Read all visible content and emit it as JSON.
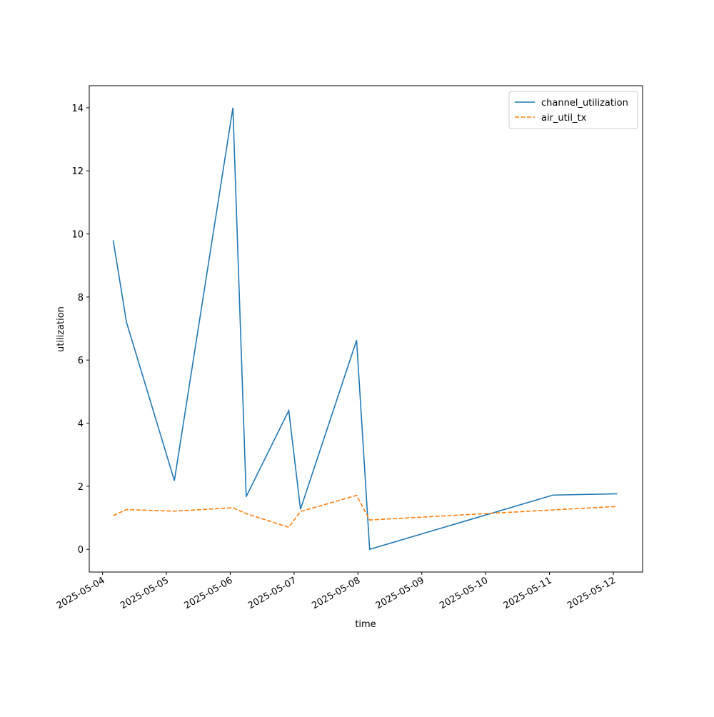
{
  "chart_data": {
    "type": "line",
    "x_label": "time",
    "y_label": "utilization",
    "x": [
      "2025-05-04T04:00",
      "2025-05-04T09:00",
      "2025-05-05T03:00",
      "2025-05-06T01:00",
      "2025-05-06T06:00",
      "2025-05-06T22:00",
      "2025-05-07T02:24",
      "2025-05-07T23:30",
      "2025-05-08T04:24",
      "2025-05-11T01:20",
      "2025-05-12T01:30"
    ],
    "series": [
      {
        "name": "channel_utilization",
        "color": "#1f77b4",
        "dash": "solid",
        "values": [
          9.8,
          7.2,
          2.18,
          14.0,
          1.67,
          4.4,
          1.27,
          6.63,
          0.0,
          1.72,
          1.76
        ]
      },
      {
        "name": "air_util_tx",
        "color": "#ff7f0e",
        "dash": "dashed",
        "values": [
          1.07,
          1.26,
          1.21,
          1.32,
          1.13,
          0.7,
          1.2,
          1.71,
          0.93,
          1.25,
          1.36
        ]
      }
    ],
    "xlim": [
      "2025-05-03T19:00",
      "2025-05-12T11:00"
    ],
    "xticks": [
      "2025-05-04",
      "2025-05-05",
      "2025-05-06",
      "2025-05-07",
      "2025-05-08",
      "2025-05-09",
      "2025-05-10",
      "2025-05-11",
      "2025-05-12"
    ],
    "ylim": [
      -0.72,
      14.7
    ],
    "yticks": [
      0,
      2,
      4,
      6,
      8,
      10,
      12,
      14
    ],
    "grid": false,
    "legend": "upper right"
  }
}
